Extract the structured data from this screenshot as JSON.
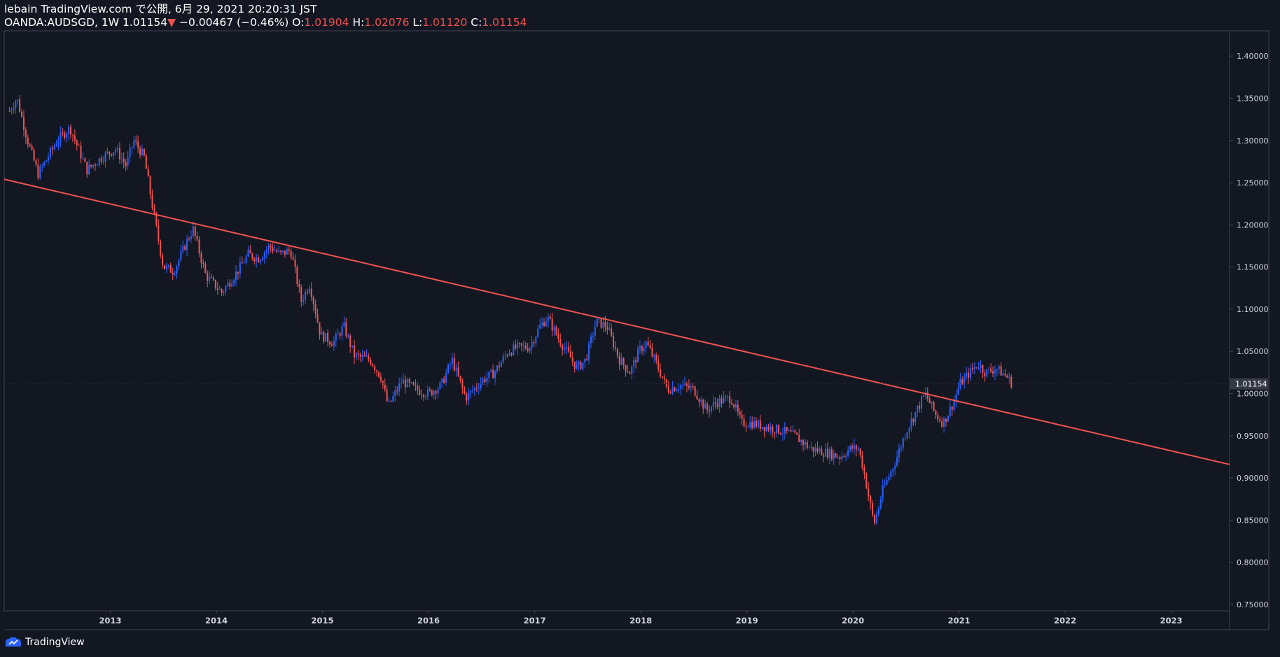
{
  "header": {
    "published_line": "lebain TradingView.com で公開, 6月 29, 2021 20:20:31 JST",
    "symbol": "OANDA:AUDSGD, 1W",
    "last": "1.01154",
    "change_arrow": "▼",
    "change": "−0.00467 (−0.46%)",
    "open_label": "O:",
    "open": "1.01904",
    "high_label": "H:",
    "high": "1.02076",
    "low_label": "L:",
    "low": "1.01120",
    "close_label": "C:",
    "close": "1.01154"
  },
  "footer": {
    "brand": "TradingView"
  },
  "colors": {
    "background": "#131722",
    "up": "#2962ff",
    "down": "#ef5350",
    "trendline": "#f05350",
    "axis_text": "#d1d4dc",
    "border": "#434651",
    "price_tag": "#363a45"
  },
  "chart_data": {
    "type": "candlestick",
    "title": "OANDA:AUDSGD, 1W",
    "xlabel": "",
    "ylabel": "",
    "xlim": [
      2012.0,
      2023.55
    ],
    "ylim": [
      0.7425,
      1.43
    ],
    "y_ticks": [
      "1.40000",
      "1.35000",
      "1.30000",
      "1.25000",
      "1.20000",
      "1.15000",
      "1.10000",
      "1.05000",
      "1.00000",
      "0.95000",
      "0.90000",
      "0.85000",
      "0.80000",
      "0.75000"
    ],
    "x_ticks": [
      "2013",
      "2014",
      "2015",
      "2016",
      "2017",
      "2018",
      "2019",
      "2020",
      "2021",
      "2022",
      "2023"
    ],
    "last_price_label": "1.01154",
    "last_price": 1.01154,
    "trendline": {
      "from": [
        2012.0,
        1.254
      ],
      "to": [
        2023.55,
        0.916
      ]
    },
    "price_path_keypoints": [
      [
        2012.05,
        1.335
      ],
      [
        2012.12,
        1.35
      ],
      [
        2012.22,
        1.3
      ],
      [
        2012.32,
        1.26
      ],
      [
        2012.5,
        1.3
      ],
      [
        2012.62,
        1.315
      ],
      [
        2012.78,
        1.265
      ],
      [
        2012.92,
        1.28
      ],
      [
        2013.05,
        1.29
      ],
      [
        2013.15,
        1.27
      ],
      [
        2013.22,
        1.3
      ],
      [
        2013.32,
        1.28
      ],
      [
        2013.4,
        1.22
      ],
      [
        2013.5,
        1.15
      ],
      [
        2013.6,
        1.145
      ],
      [
        2013.72,
        1.18
      ],
      [
        2013.78,
        1.195
      ],
      [
        2013.9,
        1.14
      ],
      [
        2014.05,
        1.12
      ],
      [
        2014.2,
        1.145
      ],
      [
        2014.3,
        1.165
      ],
      [
        2014.4,
        1.16
      ],
      [
        2014.5,
        1.175
      ],
      [
        2014.6,
        1.165
      ],
      [
        2014.7,
        1.17
      ],
      [
        2014.8,
        1.11
      ],
      [
        2014.88,
        1.13
      ],
      [
        2014.98,
        1.07
      ],
      [
        2015.1,
        1.06
      ],
      [
        2015.2,
        1.08
      ],
      [
        2015.3,
        1.045
      ],
      [
        2015.45,
        1.04
      ],
      [
        2015.55,
        1.02
      ],
      [
        2015.62,
        0.985
      ],
      [
        2015.75,
        1.015
      ],
      [
        2015.88,
        1.005
      ],
      [
        2016.0,
        1.0
      ],
      [
        2016.12,
        1.01
      ],
      [
        2016.22,
        1.04
      ],
      [
        2016.35,
        0.995
      ],
      [
        2016.5,
        1.015
      ],
      [
        2016.62,
        1.025
      ],
      [
        2016.75,
        1.05
      ],
      [
        2016.85,
        1.055
      ],
      [
        2016.95,
        1.055
      ],
      [
        2017.05,
        1.08
      ],
      [
        2017.12,
        1.09
      ],
      [
        2017.25,
        1.06
      ],
      [
        2017.4,
        1.03
      ],
      [
        2017.48,
        1.04
      ],
      [
        2017.58,
        1.085
      ],
      [
        2017.68,
        1.08
      ],
      [
        2017.8,
        1.04
      ],
      [
        2017.9,
        1.025
      ],
      [
        2017.98,
        1.05
      ],
      [
        2018.05,
        1.06
      ],
      [
        2018.15,
        1.035
      ],
      [
        2018.25,
        1.005
      ],
      [
        2018.38,
        1.01
      ],
      [
        2018.5,
        1.005
      ],
      [
        2018.62,
        0.98
      ],
      [
        2018.72,
        0.99
      ],
      [
        2018.85,
        0.995
      ],
      [
        2018.95,
        0.965
      ],
      [
        2019.05,
        0.965
      ],
      [
        2019.2,
        0.96
      ],
      [
        2019.35,
        0.955
      ],
      [
        2019.45,
        0.95
      ],
      [
        2019.6,
        0.935
      ],
      [
        2019.75,
        0.93
      ],
      [
        2019.88,
        0.925
      ],
      [
        2019.98,
        0.935
      ],
      [
        2020.05,
        0.935
      ],
      [
        2020.1,
        0.91
      ],
      [
        2020.16,
        0.87
      ],
      [
        2020.2,
        0.845
      ],
      [
        2020.28,
        0.885
      ],
      [
        2020.4,
        0.92
      ],
      [
        2020.5,
        0.955
      ],
      [
        2020.6,
        0.98
      ],
      [
        2020.68,
        1.0
      ],
      [
        2020.78,
        0.975
      ],
      [
        2020.85,
        0.965
      ],
      [
        2020.95,
        0.99
      ],
      [
        2021.0,
        1.01
      ],
      [
        2021.1,
        1.025
      ],
      [
        2021.18,
        1.035
      ],
      [
        2021.25,
        1.025
      ],
      [
        2021.35,
        1.03
      ],
      [
        2021.45,
        1.02
      ],
      [
        2021.5,
        1.01154
      ]
    ],
    "candles_visible": true
  }
}
